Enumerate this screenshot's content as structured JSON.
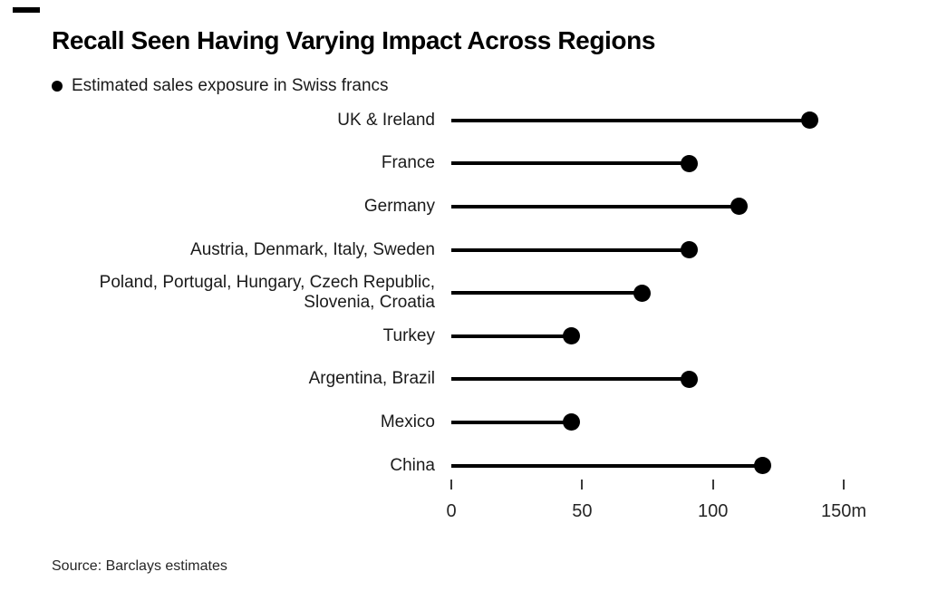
{
  "header": {
    "title": "Recall Seen Having Varying Impact Across Regions",
    "legend_label": "Estimated sales exposure in Swiss francs"
  },
  "chart_data": {
    "type": "bar",
    "variant": "horizontal-lollipop",
    "title": "Recall Seen Having Varying Impact Across Regions",
    "legend": "Estimated sales exposure in Swiss francs",
    "unit": "Swiss francs, millions",
    "categories": [
      "UK & Ireland",
      "France",
      "Germany",
      "Austria, Denmark, Italy, Sweden",
      "Poland, Portugal, Hungary, Czech Republic, Slovenia, Croatia",
      "Turkey",
      "Argentina, Brazil",
      "Mexico",
      "China"
    ],
    "values": [
      137,
      91,
      110,
      91,
      73,
      46,
      91,
      46,
      119
    ],
    "xlim": [
      0,
      150
    ],
    "xticks": [
      0,
      50,
      100,
      150
    ],
    "xtick_labels": [
      "0",
      "50",
      "100",
      "150m"
    ],
    "grid": false,
    "legend_position": "top-left"
  },
  "footer": {
    "source": "Source: Barclays estimates"
  },
  "colors": {
    "accent": "#000000",
    "text": "#1a1a1a",
    "tick_text": "#262626",
    "background": "#ffffff"
  }
}
